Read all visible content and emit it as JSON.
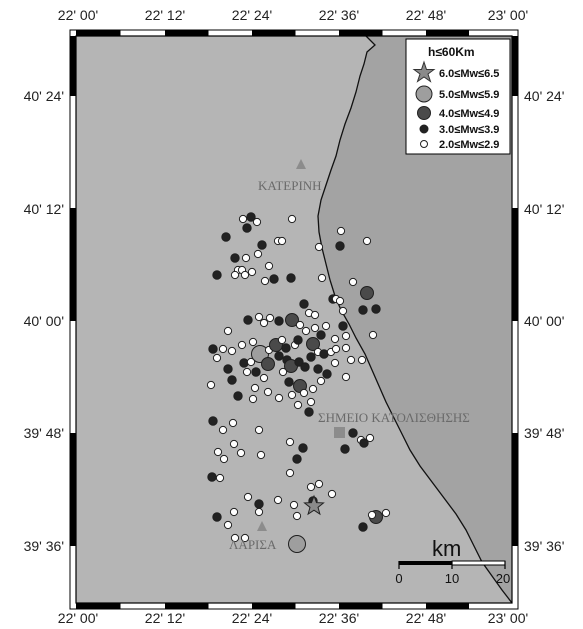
{
  "map": {
    "colors": {
      "land": "#b5b5b5",
      "sea": "#a3a3a3",
      "coast": "#111111",
      "frame": "#000000",
      "small_event": "#ffffff",
      "event_3": "#222222",
      "event_4": "#4a4a4a",
      "event_5": "#9e9e9e",
      "event_6": "#8a8a8a",
      "city": "#8c8c8c"
    },
    "lon_labels": [
      "22' 00'",
      "22' 12'",
      "22' 24'",
      "22' 36'",
      "22' 48'",
      "23' 00'"
    ],
    "lat_labels": [
      "40' 24'",
      "40' 12'",
      "40' 00'",
      "39' 48'",
      "39' 36'"
    ],
    "places": {
      "katerini": "ΚΑΤΕΡΙΝΗ",
      "landslide": "ΣΗΜΕΙΟ ΚΑΤΟΛΙΣΘΗΣΗΣ",
      "larisa": "ΛΑΡΙΣΑ"
    },
    "legend": {
      "title": "h≤60Km",
      "items": [
        {
          "label": "6.0≤Mw≤6.5",
          "symbol": "star-icon"
        },
        {
          "label": "5.0≤Mw≤5.9",
          "symbol": "large-circle-icon"
        },
        {
          "label": "4.0≤Mw≤4.9",
          "symbol": "medium-circle-icon"
        },
        {
          "label": "3.0≤Mw≤3.9",
          "symbol": "small-circle-icon"
        },
        {
          "label": "2.0≤Mw≤2.9",
          "symbol": "hollow-circle-icon"
        }
      ]
    },
    "scale": {
      "unit": "km",
      "ticks": [
        "0",
        "10",
        "20"
      ]
    }
  }
}
